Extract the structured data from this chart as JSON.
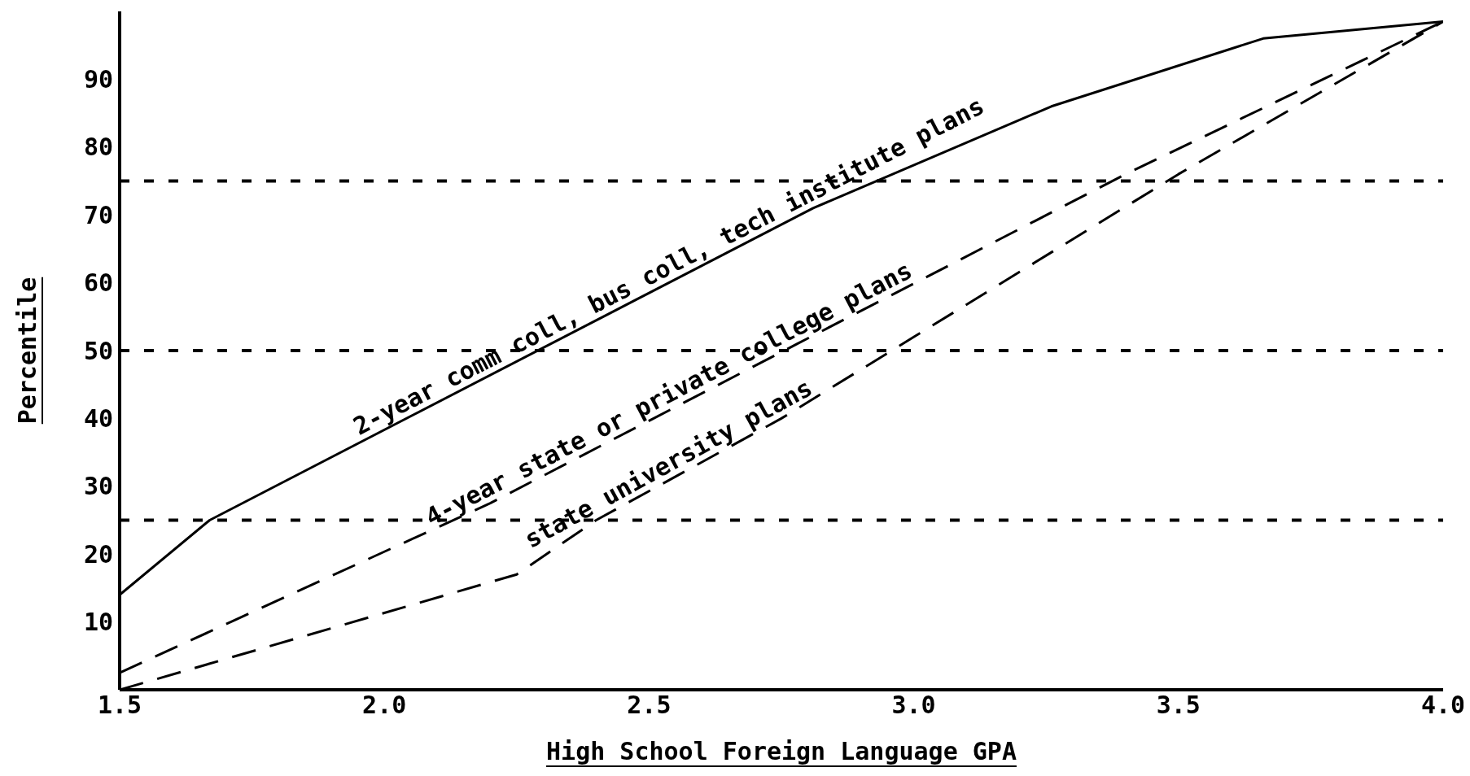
{
  "chart_data": {
    "type": "line",
    "xlabel": "High School Foreign Language GPA",
    "ylabel": "Percentile",
    "xlim": [
      1.5,
      4.0
    ],
    "xticks": [
      {
        "value": 1.5,
        "label": "1.5"
      },
      {
        "value": 2,
        "label": "2.0"
      },
      {
        "value": 2.5,
        "label": "2.5"
      },
      {
        "value": 3,
        "label": "3.0"
      },
      {
        "value": 3.5,
        "label": "3.5"
      },
      {
        "value": 4,
        "label": "4.0"
      }
    ],
    "ylim": [
      0,
      100
    ],
    "yticks": [
      10,
      20,
      30,
      40,
      50,
      60,
      70,
      80,
      90
    ],
    "ref_lines": [
      {
        "axis": "y",
        "value": 25,
        "color": "#000000",
        "line_style": "dashed"
      },
      {
        "axis": "y",
        "value": 50,
        "color": "#000000",
        "line_style": "dashed"
      },
      {
        "axis": "y",
        "value": 75,
        "color": "#000000",
        "line_style": "dashed"
      }
    ],
    "series": [
      {
        "name": "2-year comm coll, bus coll, tech institute plans",
        "color": "#000000",
        "line_style": "solid",
        "x": [
          1.5,
          1.67,
          2.81,
          3.26,
          3.66,
          4.0
        ],
        "values": [
          14,
          25,
          71,
          86,
          96,
          98.5
        ]
      },
      {
        "name": "4-year state or private college plans",
        "color": "#000000",
        "line_style": "dashed",
        "x": [
          1.5,
          2.2,
          2.78,
          3.4,
          4.0
        ],
        "values": [
          2.5,
          27.5,
          51,
          76,
          98.5
        ]
      },
      {
        "name": "state university plans",
        "color": "#000000",
        "line_style": "dashed",
        "x": [
          1.5,
          2.25,
          2.4,
          2.75,
          3.0,
          3.5,
          4.0
        ],
        "values": [
          0,
          17,
          25,
          40,
          52,
          76,
          98.5
        ]
      }
    ]
  }
}
